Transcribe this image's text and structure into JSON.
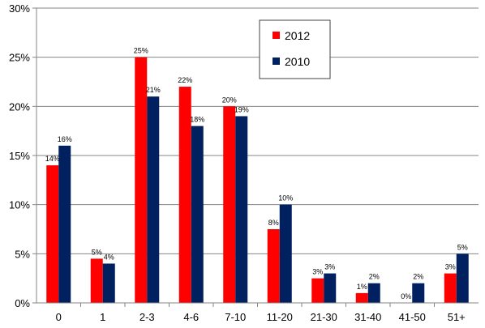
{
  "chart_data": {
    "type": "bar",
    "title": "",
    "xlabel": "",
    "ylabel": "",
    "categories": [
      "0",
      "1",
      "2-3",
      "4-6",
      "7-10",
      "11-20",
      "21-30",
      "31-40",
      "41-50",
      "51+"
    ],
    "series": [
      {
        "name": "2012",
        "color": "#ff0000",
        "values": [
          14,
          4.5,
          25,
          22,
          20,
          7.5,
          2.5,
          1,
          0,
          3
        ],
        "labels": [
          "14%",
          "5%",
          "25%",
          "22%",
          "20%",
          "8%",
          "3%",
          "1%",
          "0%",
          "3%"
        ]
      },
      {
        "name": "2010",
        "color": "#002060",
        "values": [
          16,
          4,
          21,
          18,
          19,
          10,
          3,
          2,
          2,
          5
        ],
        "labels": [
          "16%",
          "4%",
          "21%",
          "18%",
          "19%",
          "10%",
          "3%",
          "2%",
          "2%",
          "5%"
        ]
      }
    ],
    "ylim": [
      0,
      30
    ],
    "yticks": [
      0,
      5,
      10,
      15,
      20,
      25,
      30
    ],
    "ytick_labels": [
      "0%",
      "5%",
      "10%",
      "15%",
      "20%",
      "25%",
      "30%"
    ],
    "grid": true,
    "legend_position": "top-right"
  }
}
